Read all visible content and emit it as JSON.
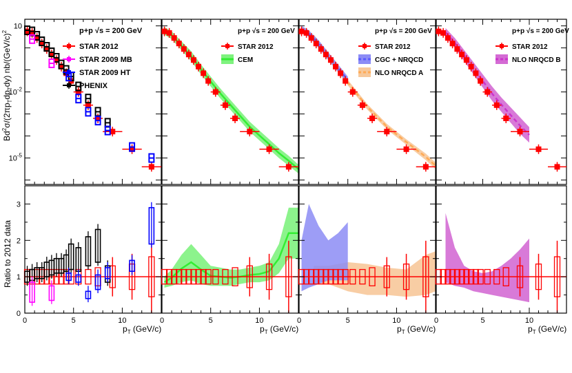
{
  "colors": {
    "star2012": "#ff0000",
    "star2009mb": "#ff00ff",
    "star2009ht": "#0000ff",
    "phenix": "#000000",
    "cem": "#33ee33",
    "cem_light": "#7ff27f",
    "cgc": "#5a5aff",
    "cgc_light": "#8c8cf5",
    "nlo_a": "#ffaa55",
    "nlo_a_light": "#f7c89a",
    "nlo_b": "#cc33cc",
    "nlo_b_light": "#d46bd4"
  },
  "axes": {
    "ylabel_top": "Bd²σ/(2πp_T dp_T dy) nb/(GeV/c)²",
    "ylabel_top_main": "Bd",
    "ylabel_top_sup": "2",
    "ylabel_top_rest": "σ/(2πp",
    "ylabel_top_sub1": "T",
    "ylabel_top_rest2": "dp",
    "ylabel_top_sub2": "T",
    "ylabel_top_rest3": "dy) nb/(GeV/c)",
    "ylabel_top_sup2": "2",
    "ylabel_bottom": "Ratio to 2012 data",
    "xlabel_main": "p",
    "xlabel_sub": "T",
    "xlabel_unit": "(GeV/c)",
    "top_yticks": [
      {
        "exp": 1,
        "label": "10"
      },
      {
        "exp": -2,
        "label": "10",
        "sup": "-2"
      },
      {
        "exp": -5,
        "label": "10",
        "sup": "-5"
      }
    ],
    "bottom_yticks": [
      0,
      1,
      2,
      3
    ],
    "xticks": [
      0,
      5,
      10
    ]
  },
  "panels": [
    {
      "id": "panel1",
      "legend_header": "p+p  √s = 200 GeV",
      "legend_items": [
        {
          "label": "STAR 2012",
          "style": "star2012"
        },
        {
          "label": "STAR 2009 MB",
          "style": "star2009mb"
        },
        {
          "label": "STAR 2009 HT",
          "style": "star2009ht"
        },
        {
          "label": "PHENIX",
          "style": "phenix"
        }
      ]
    },
    {
      "id": "panel2",
      "legend_header": "p+p  √s = 200 GeV",
      "legend_items": [
        {
          "label": "STAR 2012",
          "style": "star2012"
        },
        {
          "label": "CEM",
          "style": "cem"
        }
      ]
    },
    {
      "id": "panel3",
      "legend_header": "p+p  √s = 200 GeV",
      "legend_items": [
        {
          "label": "STAR 2012",
          "style": "star2012"
        },
        {
          "label": "CGC + NRQCD",
          "style": "cgc"
        },
        {
          "label": "NLO NRQCD A",
          "style": "nlo_a"
        }
      ]
    },
    {
      "id": "panel4",
      "legend_header": "p+p  √s = 200 GeV",
      "legend_items": [
        {
          "label": "STAR 2012",
          "style": "star2012"
        },
        {
          "label": "NLO NRQCD B",
          "style": "nlo_b"
        }
      ]
    }
  ],
  "chart_data": {
    "type": "scatter",
    "title": "",
    "xlabel": "p_T (GeV/c)",
    "ylabel_top": "Bd²σ/(2πp_T dp_T dy) nb/(GeV/c)²",
    "ylabel_bottom": "Ratio to 2012 data",
    "xlim": [
      0,
      14
    ],
    "ylim_top_log10": [
      -6.2,
      1.3
    ],
    "ylim_bottom": [
      0,
      3.5
    ],
    "series": [
      {
        "name": "STAR 2012",
        "pt": [
          0.25,
          0.75,
          1.25,
          1.75,
          2.25,
          2.75,
          3.25,
          3.75,
          4.25,
          4.75,
          5.5,
          6.5,
          7.5,
          9.0,
          11.0,
          13.0
        ],
        "xerr": [
          0.25,
          0.25,
          0.25,
          0.25,
          0.25,
          0.25,
          0.25,
          0.25,
          0.25,
          0.25,
          0.5,
          0.5,
          0.5,
          1.0,
          1.0,
          1.0
        ],
        "log10y": [
          0.75,
          0.68,
          0.45,
          0.2,
          -0.05,
          -0.3,
          -0.55,
          -0.85,
          -1.15,
          -1.5,
          -2.0,
          -2.6,
          -3.2,
          -3.8,
          -4.6,
          -5.4
        ],
        "ratio_err": [
          0.2,
          0.2,
          0.2,
          0.2,
          0.2,
          0.2,
          0.2,
          0.2,
          0.2,
          0.2,
          0.2,
          0.2,
          0.25,
          0.3,
          0.35,
          0.55
        ]
      },
      {
        "name": "STAR 2009 MB",
        "pt": [
          0.75,
          2.75
        ],
        "log10y": [
          0.4,
          -0.7
        ],
        "ratio": [
          0.55,
          0.45
        ],
        "ratio_lo": [
          0.3,
          0.35
        ],
        "ratio_hi": [
          0.85,
          0.75
        ]
      },
      {
        "name": "STAR 2009 HT",
        "pt": [
          4.5,
          5.5,
          6.5,
          7.5,
          8.5,
          11.0,
          13.0
        ],
        "log10y": [
          -1.3,
          -2.3,
          -2.9,
          -3.3,
          -3.75,
          -4.5,
          -5.0
        ],
        "ratio": [
          1.0,
          0.95,
          0.5,
          0.85,
          1.1,
          1.3,
          2.4
        ],
        "ratio_lo": [
          0.9,
          0.85,
          0.4,
          0.65,
          0.95,
          1.15,
          1.9
        ],
        "ratio_hi": [
          1.1,
          1.05,
          0.6,
          1.05,
          1.25,
          1.45,
          2.9
        ]
      },
      {
        "name": "PHENIX",
        "pt": [
          0.25,
          0.75,
          1.25,
          1.75,
          2.25,
          2.75,
          3.25,
          3.75,
          4.25,
          4.75,
          5.5,
          6.5,
          7.5,
          8.5
        ],
        "log10y": [
          0.8,
          0.75,
          0.55,
          0.3,
          0.05,
          -0.2,
          -0.45,
          -0.75,
          -1.0,
          -1.3,
          -1.75,
          -2.3,
          -2.9,
          -3.4
        ],
        "ratio": [
          1.0,
          1.05,
          1.1,
          1.1,
          1.2,
          1.25,
          1.3,
          1.3,
          1.35,
          1.5,
          1.45,
          1.7,
          1.8,
          1.05
        ],
        "ratio_lo": [
          0.85,
          0.9,
          0.95,
          0.95,
          1.0,
          1.05,
          1.1,
          1.1,
          1.15,
          1.2,
          1.15,
          1.3,
          1.4,
          0.85
        ],
        "ratio_hi": [
          1.15,
          1.2,
          1.25,
          1.25,
          1.4,
          1.45,
          1.5,
          1.5,
          1.6,
          1.9,
          1.8,
          2.1,
          2.3,
          1.3
        ]
      },
      {
        "name": "CEM",
        "pt": [
          0.25,
          1,
          2,
          3,
          4,
          5,
          6,
          7,
          8,
          9,
          10,
          11,
          12,
          13,
          14
        ],
        "log10_lo": [
          0.6,
          0.4,
          -0.1,
          -0.6,
          -1.2,
          -1.75,
          -2.3,
          -2.8,
          -3.3,
          -3.8,
          -4.2,
          -4.6,
          -5.0,
          -5.35,
          -5.7
        ],
        "log10_hi": [
          0.95,
          0.75,
          0.3,
          -0.15,
          -0.75,
          -1.3,
          -1.85,
          -2.35,
          -2.85,
          -3.35,
          -3.75,
          -4.15,
          -4.55,
          -4.9,
          -5.3
        ],
        "ratio_lo": [
          0.7,
          0.75,
          0.85,
          0.9,
          0.8,
          0.75,
          0.75,
          0.75,
          0.8,
          0.85,
          0.85,
          0.9,
          1.1,
          1.5,
          1.5
        ],
        "ratio_hi": [
          1.0,
          1.2,
          1.6,
          1.9,
          1.6,
          1.3,
          1.25,
          1.2,
          1.2,
          1.25,
          1.3,
          1.4,
          1.9,
          2.9,
          2.9
        ]
      },
      {
        "name": "CGC + NRQCD",
        "pt": [
          0.25,
          1,
          2,
          3,
          4,
          5
        ],
        "log10_lo": [
          0.7,
          0.5,
          0.0,
          -0.55,
          -1.1,
          -1.6
        ],
        "log10_hi": [
          1.0,
          0.8,
          0.35,
          -0.2,
          -0.75,
          -1.3
        ],
        "ratio_lo": [
          0.6,
          0.7,
          0.8,
          0.9,
          0.9,
          0.9
        ],
        "ratio_hi": [
          2.0,
          3.0,
          2.4,
          2.0,
          2.2,
          2.5
        ]
      },
      {
        "name": "NLO NRQCD A",
        "pt": [
          1.5,
          3,
          5,
          7,
          9,
          11,
          13,
          14
        ],
        "log10_lo": [
          0.3,
          -0.5,
          -1.7,
          -2.8,
          -3.7,
          -4.4,
          -5.1,
          -5.5
        ],
        "log10_hi": [
          0.6,
          -0.25,
          -1.45,
          -2.55,
          -3.45,
          -4.15,
          -4.8,
          -5.2
        ],
        "ratio_lo": [
          0.8,
          0.8,
          0.6,
          0.5,
          0.5,
          0.45,
          0.5,
          0.6
        ],
        "ratio_hi": [
          1.3,
          1.3,
          1.4,
          1.35,
          1.25,
          1.2,
          1.6,
          1.7
        ]
      },
      {
        "name": "NLO NRQCD B",
        "pt": [
          1.0,
          2,
          3,
          4,
          5,
          6,
          7,
          8,
          9,
          10
        ],
        "log10_lo": [
          0.5,
          0.0,
          -0.6,
          -1.2,
          -1.8,
          -2.4,
          -2.9,
          -3.4,
          -3.9,
          -4.3
        ],
        "log10_hi": [
          0.9,
          0.45,
          -0.1,
          -0.65,
          -1.2,
          -1.75,
          -2.25,
          -2.7,
          -3.15,
          -3.6
        ],
        "ratio_lo": [
          0.85,
          0.75,
          0.7,
          0.6,
          0.55,
          0.5,
          0.45,
          0.4,
          0.35,
          0.3
        ],
        "ratio_hi": [
          2.75,
          1.8,
          1.3,
          1.15,
          1.1,
          1.15,
          1.3,
          1.5,
          1.75,
          2.05
        ]
      }
    ]
  }
}
